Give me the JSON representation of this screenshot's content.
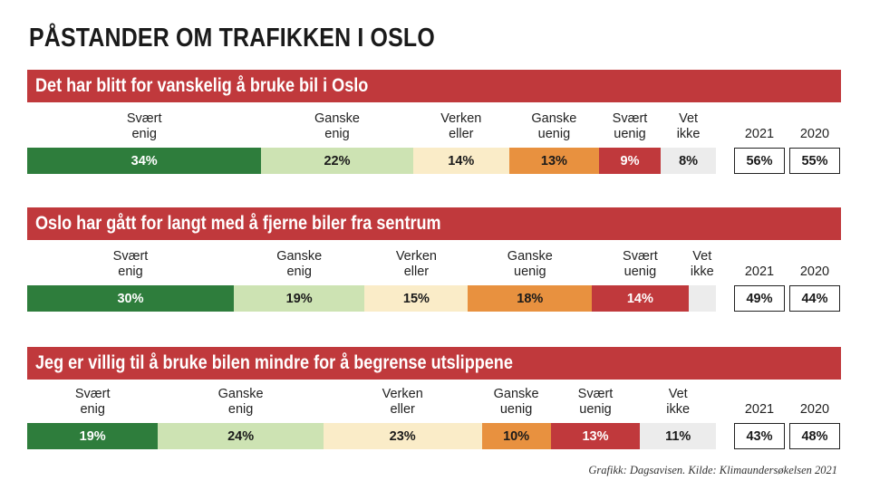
{
  "title": "PÅSTANDER OM TRAFIKKEN I OSLO",
  "credit": "Grafikk: Dagsavisen. Kilde: Klimaundersøkelsen 2021",
  "colors": {
    "banner": "#c0393c",
    "svaert_enig": "#2e7d3c",
    "ganske_enig": "#cde3b3",
    "verken_eller": "#faecc8",
    "ganske_uenig": "#e8913f",
    "svaert_uenig": "#c0393c",
    "vet_ikke": "#ececec"
  },
  "chart_data": [
    {
      "type": "bar",
      "title": "Det har blitt for vanskelig å bruke bil i Oslo",
      "categories": [
        "Svært\nenig",
        "Ganske\nenig",
        "Verken\neller",
        "Ganske\nuenig",
        "Svært\nuenig",
        "Vet\nikke"
      ],
      "values": [
        34,
        22,
        14,
        13,
        9,
        8
      ],
      "years": [
        {
          "label": "2021",
          "value": "56%"
        },
        {
          "label": "2020",
          "value": "55%"
        }
      ]
    },
    {
      "type": "bar",
      "title": "Oslo har gått for langt med å fjerne biler fra sentrum",
      "categories": [
        "Svært\nenig",
        "Ganske\nenig",
        "Verken\neller",
        "Ganske\nuenig",
        "Svært\nuenig",
        "Vet\nikke"
      ],
      "values": [
        30,
        19,
        15,
        18,
        14,
        4
      ],
      "hidden_value_labels": [
        5
      ],
      "years": [
        {
          "label": "2021",
          "value": "49%"
        },
        {
          "label": "2020",
          "value": "44%"
        }
      ]
    },
    {
      "type": "bar",
      "title": "Jeg er villig til å bruke bilen mindre for å begrense utslippene",
      "categories": [
        "Svært\nenig",
        "Ganske\nenig",
        "Verken\neller",
        "Ganske\nuenig",
        "Svært\nuenig",
        "Vet\nikke"
      ],
      "values": [
        19,
        24,
        23,
        10,
        13,
        11
      ],
      "years": [
        {
          "label": "2021",
          "value": "43%"
        },
        {
          "label": "2020",
          "value": "48%"
        }
      ]
    }
  ]
}
